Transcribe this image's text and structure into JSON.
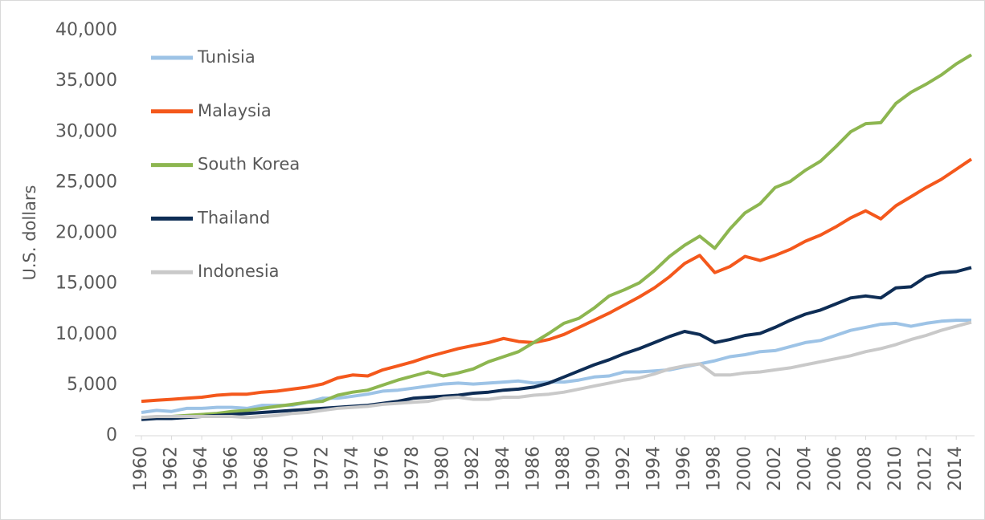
{
  "chart_data": {
    "type": "line",
    "y_label": "U.S. dollars",
    "x": [
      1960,
      1961,
      1962,
      1963,
      1964,
      1965,
      1966,
      1967,
      1968,
      1969,
      1970,
      1971,
      1972,
      1973,
      1974,
      1975,
      1976,
      1977,
      1978,
      1979,
      1980,
      1981,
      1982,
      1983,
      1984,
      1985,
      1986,
      1987,
      1988,
      1989,
      1990,
      1991,
      1992,
      1993,
      1994,
      1995,
      1996,
      1997,
      1998,
      1999,
      2000,
      2001,
      2002,
      2003,
      2004,
      2005,
      2006,
      2007,
      2008,
      2009,
      2010,
      2011,
      2012,
      2013,
      2014,
      2015
    ],
    "xlim": [
      1960,
      2015
    ],
    "xticks": [
      1960,
      1962,
      1964,
      1966,
      1968,
      1970,
      1972,
      1974,
      1976,
      1978,
      1980,
      1982,
      1984,
      1986,
      1988,
      1990,
      1992,
      1994,
      1996,
      1998,
      2000,
      2002,
      2004,
      2006,
      2008,
      2010,
      2012,
      2014
    ],
    "ylim": [
      0,
      40000
    ],
    "yticks": [
      0,
      {
        "value": 5000,
        "label": "5,000"
      },
      {
        "value": 10000,
        "label": "10,000"
      },
      {
        "value": 15000,
        "label": "15,000"
      },
      {
        "value": 20000,
        "label": "20,000"
      },
      {
        "value": 25000,
        "label": "25,000"
      },
      {
        "value": 30000,
        "label": "30,000"
      },
      {
        "value": 35000,
        "label": "35,000"
      },
      {
        "value": 40000,
        "label": "40,000"
      }
    ],
    "grid": false,
    "legend": "upper left",
    "series": [
      {
        "name": "Tunisia",
        "color": "#9dc3e6",
        "values": [
          2300,
          2500,
          2400,
          2700,
          2700,
          2800,
          2800,
          2700,
          3000,
          3000,
          3000,
          3300,
          3700,
          3700,
          3900,
          4100,
          4400,
          4500,
          4700,
          4900,
          5100,
          5200,
          5100,
          5200,
          5300,
          5400,
          5200,
          5300,
          5300,
          5500,
          5800,
          5900,
          6300,
          6300,
          6400,
          6500,
          6800,
          7100,
          7400,
          7800,
          8000,
          8300,
          8400,
          8800,
          9200,
          9400,
          9900,
          10400,
          10700,
          11000,
          11100,
          10800,
          11100,
          11300,
          11400,
          11400
        ]
      },
      {
        "name": "Malaysia",
        "color": "#f4581c",
        "values": [
          3400,
          3500,
          3600,
          3700,
          3800,
          4000,
          4100,
          4100,
          4300,
          4400,
          4600,
          4800,
          5100,
          5700,
          6000,
          5900,
          6500,
          6900,
          7300,
          7800,
          8200,
          8600,
          8900,
          9200,
          9600,
          9300,
          9200,
          9500,
          10000,
          10700,
          11400,
          12100,
          12900,
          13700,
          14600,
          15700,
          17000,
          17800,
          16100,
          16700,
          17700,
          17300,
          17800,
          18400,
          19200,
          19800,
          20600,
          21500,
          22200,
          21400,
          22700,
          23600,
          24500,
          25300,
          26300,
          27300
        ]
      },
      {
        "name": "South Korea",
        "color": "#8db650",
        "values": [
          1800,
          1800,
          1900,
          2000,
          2100,
          2200,
          2400,
          2500,
          2700,
          2900,
          3100,
          3300,
          3400,
          4000,
          4300,
          4500,
          5000,
          5500,
          5900,
          6300,
          5900,
          6200,
          6600,
          7300,
          7800,
          8300,
          9200,
          10100,
          11100,
          11600,
          12600,
          13800,
          14400,
          15100,
          16300,
          17700,
          18800,
          19700,
          18500,
          20400,
          22000,
          22900,
          24500,
          25100,
          26200,
          27100,
          28500,
          30000,
          30800,
          30900,
          32800,
          33900,
          34700,
          35600,
          36700,
          37600
        ]
      },
      {
        "name": "Thailand",
        "color": "#0e2d55",
        "values": [
          1600,
          1700,
          1700,
          1800,
          1900,
          2000,
          2100,
          2200,
          2300,
          2400,
          2500,
          2600,
          2700,
          2800,
          2900,
          3000,
          3200,
          3400,
          3700,
          3800,
          3900,
          4000,
          4200,
          4300,
          4500,
          4600,
          4800,
          5200,
          5800,
          6400,
          7000,
          7500,
          8100,
          8600,
          9200,
          9800,
          10300,
          10000,
          9200,
          9500,
          9900,
          10100,
          10700,
          11400,
          12000,
          12400,
          13000,
          13600,
          13800,
          13600,
          14600,
          14700,
          15700,
          16100,
          16200,
          16600
        ]
      },
      {
        "name": "Indonesia",
        "color": "#c9c9c9",
        "values": [
          1800,
          1900,
          1900,
          1900,
          1900,
          1900,
          1900,
          1800,
          1900,
          2000,
          2200,
          2300,
          2500,
          2700,
          2800,
          2900,
          3100,
          3200,
          3300,
          3400,
          3700,
          3800,
          3600,
          3600,
          3800,
          3800,
          4000,
          4100,
          4300,
          4600,
          4900,
          5200,
          5500,
          5700,
          6100,
          6600,
          6900,
          7100,
          6000,
          6000,
          6200,
          6300,
          6500,
          6700,
          7000,
          7300,
          7600,
          7900,
          8300,
          8600,
          9000,
          9500,
          9900,
          10400,
          10800,
          11200
        ]
      }
    ]
  }
}
